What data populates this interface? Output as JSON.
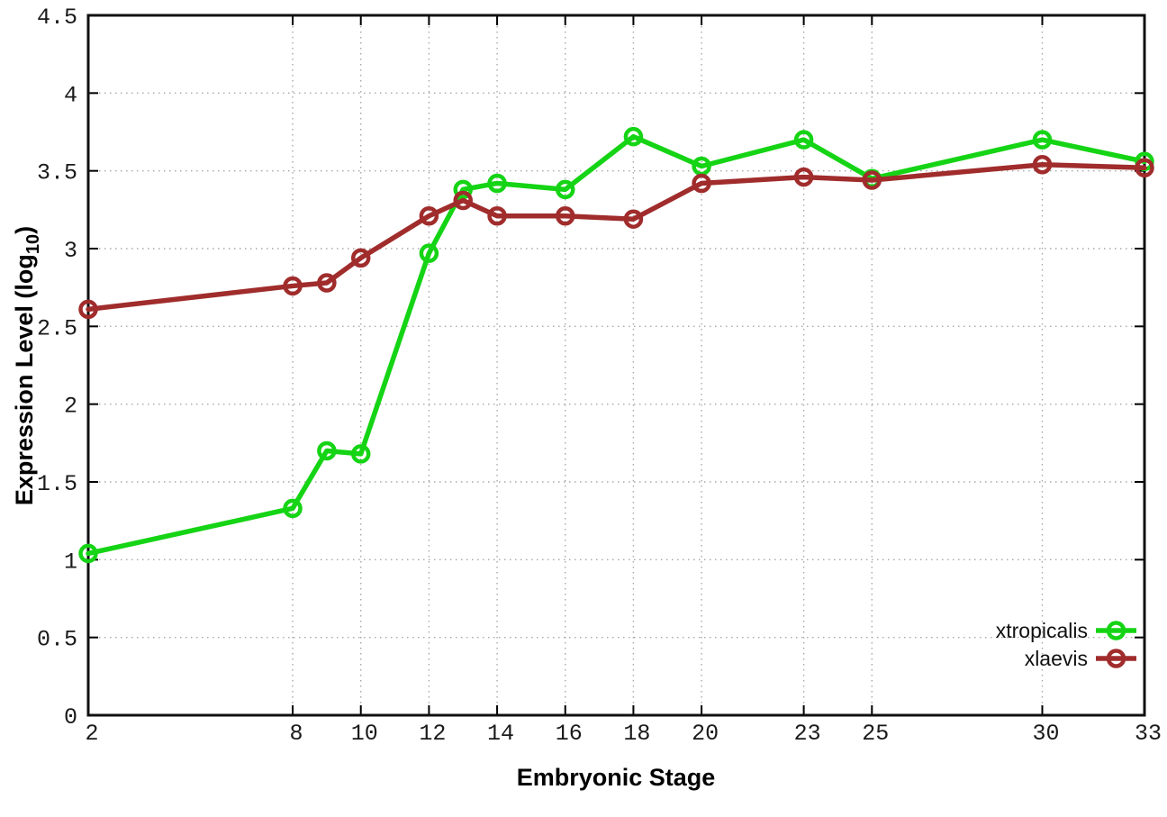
{
  "chart_data": {
    "type": "line",
    "title": "",
    "xlabel": "Embryonic Stage",
    "ylabel": "Expression Level (log10)",
    "ylabel_parts": {
      "base": "Expression Level (log",
      "sub": "10",
      "close": ")"
    },
    "xlim": [
      2,
      33
    ],
    "ylim": [
      0,
      4.5
    ],
    "grid": true,
    "legend_position": "bottom-right",
    "x_ticks": [
      {
        "v": 2,
        "label": "2"
      },
      {
        "v": 8,
        "label": "8"
      },
      {
        "v": 10,
        "label": "10"
      },
      {
        "v": 12,
        "label": "12"
      },
      {
        "v": 14,
        "label": "14"
      },
      {
        "v": 16,
        "label": "16"
      },
      {
        "v": 18,
        "label": "18"
      },
      {
        "v": 20,
        "label": "20"
      },
      {
        "v": 23,
        "label": "23"
      },
      {
        "v": 25,
        "label": "25"
      },
      {
        "v": 30,
        "label": "30"
      },
      {
        "v": 33,
        "label": "33"
      }
    ],
    "y_ticks": [
      {
        "v": 0,
        "label": "0"
      },
      {
        "v": 0.5,
        "label": "0.5"
      },
      {
        "v": 1,
        "label": "1"
      },
      {
        "v": 1.5,
        "label": "1.5"
      },
      {
        "v": 2,
        "label": "2"
      },
      {
        "v": 2.5,
        "label": "2.5"
      },
      {
        "v": 3,
        "label": "3"
      },
      {
        "v": 3.5,
        "label": "3.5"
      },
      {
        "v": 4,
        "label": "4"
      },
      {
        "v": 4.5,
        "label": "4.5"
      }
    ],
    "x": [
      2,
      8,
      9,
      10,
      12,
      13,
      14,
      16,
      18,
      20,
      23,
      25,
      30,
      33
    ],
    "series": [
      {
        "name": "xtropicalis",
        "color": "#15d415",
        "values": [
          1.04,
          1.33,
          1.7,
          1.68,
          2.97,
          3.38,
          3.42,
          3.38,
          3.72,
          3.53,
          3.7,
          3.45,
          3.7,
          3.56
        ]
      },
      {
        "name": "xlaevis",
        "color": "#a02c2c",
        "values": [
          2.61,
          2.76,
          2.78,
          2.94,
          3.21,
          3.31,
          3.21,
          3.21,
          3.19,
          3.42,
          3.46,
          3.44,
          3.54,
          3.52
        ]
      }
    ]
  }
}
